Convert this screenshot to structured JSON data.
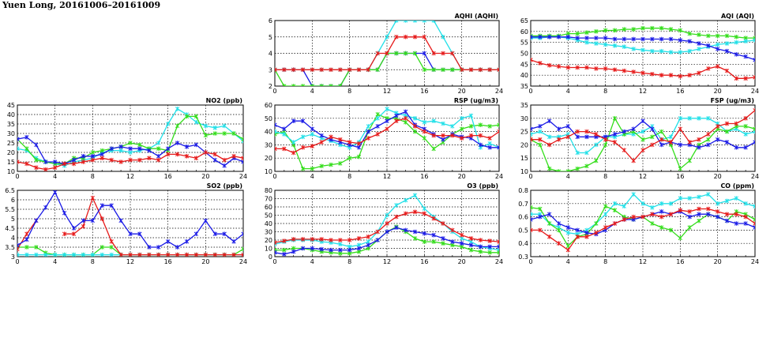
{
  "page": {
    "title": "Yuen Long, 20161006–20161009"
  },
  "colors": {
    "blue": "#1a1ae6",
    "red": "#e61a1a",
    "green": "#33dd1a",
    "cyan": "#22e0e8",
    "grid": "#000000"
  },
  "chart_data": [
    {
      "id": "aqhi",
      "type": "line",
      "title": "AQHI (AQHI)",
      "xlim": [
        0,
        24
      ],
      "xticks": [
        0,
        4,
        8,
        12,
        16,
        20,
        24
      ],
      "ylim": [
        2,
        6
      ],
      "yticks": [
        2,
        3,
        4,
        5,
        6
      ],
      "grid": true,
      "series": [
        {
          "color": "blue",
          "values": [
            3,
            3,
            3,
            3,
            2,
            2,
            2,
            2,
            3,
            3,
            3,
            3,
            4,
            4,
            4,
            4,
            4,
            3,
            3,
            3,
            3,
            3,
            3,
            3,
            3
          ]
        },
        {
          "color": "green",
          "values": [
            3,
            2,
            2,
            2,
            2,
            2,
            2,
            2,
            3,
            3,
            3,
            3,
            4,
            4,
            4,
            4,
            3,
            3,
            3,
            3,
            3,
            3,
            3,
            3,
            3
          ]
        },
        {
          "color": "cyan",
          "values": [
            3,
            3,
            3,
            3,
            3,
            3,
            3,
            3,
            3,
            3,
            3,
            4,
            5,
            6,
            6,
            6,
            6,
            6,
            5,
            4,
            3,
            3,
            3,
            3,
            3
          ]
        },
        {
          "color": "red",
          "values": [
            3,
            3,
            3,
            3,
            3,
            3,
            3,
            3,
            3,
            3,
            3,
            4,
            4,
            5,
            5,
            5,
            5,
            4,
            4,
            4,
            3,
            3,
            3,
            3,
            3
          ]
        }
      ]
    },
    {
      "id": "aqi",
      "type": "line",
      "title": "AQI (AQI)",
      "xlim": [
        0,
        24
      ],
      "xticks": [
        0,
        4,
        8,
        12,
        16,
        20,
        24
      ],
      "ylim": [
        35,
        65
      ],
      "yticks": [
        35,
        40,
        45,
        50,
        55,
        60,
        65
      ],
      "grid": true,
      "series": [
        {
          "color": "green",
          "values": [
            58,
            58,
            58,
            58,
            59,
            59,
            59.5,
            60,
            60.5,
            60.5,
            61,
            61,
            61.5,
            61.5,
            61.5,
            61,
            60.5,
            59,
            58.5,
            58,
            58,
            58,
            57.5,
            57,
            57
          ]
        },
        {
          "color": "cyan",
          "values": [
            57,
            57,
            57.5,
            57.5,
            57,
            56,
            55,
            54.5,
            54,
            53.5,
            53,
            52,
            51.5,
            51,
            51,
            50.5,
            50.5,
            51,
            52,
            53,
            54,
            54.5,
            55,
            55.5,
            56
          ]
        },
        {
          "color": "blue",
          "values": [
            57.5,
            57.5,
            57.5,
            57.5,
            57.5,
            57,
            57,
            57,
            57,
            56.5,
            56.5,
            56.5,
            56.5,
            56.5,
            56.5,
            56.5,
            56,
            55.5,
            54.5,
            53.5,
            52,
            51,
            49.5,
            48.5,
            47
          ]
        },
        {
          "color": "red",
          "values": [
            47,
            45.5,
            44.5,
            44,
            43.5,
            43.5,
            43.5,
            43,
            43,
            42.5,
            42,
            41.5,
            41,
            40.5,
            40,
            40,
            39.5,
            40,
            41,
            43,
            44,
            42,
            38.5,
            38.5,
            39
          ]
        }
      ]
    },
    {
      "id": "no2",
      "type": "line",
      "title": "NO2 (ppb)",
      "xlim": [
        0,
        24
      ],
      "xticks": [
        0,
        4,
        8,
        12,
        16,
        20,
        24
      ],
      "ylim": [
        10,
        45
      ],
      "yticks": [
        10,
        15,
        20,
        25,
        30,
        35,
        40,
        45
      ],
      "grid": true,
      "series": [
        {
          "color": "cyan",
          "values": [
            22,
            21,
            17,
            15,
            14,
            13,
            15,
            16,
            17,
            20,
            21,
            21,
            20,
            21,
            22,
            25,
            35,
            43,
            40,
            36,
            34,
            33,
            34,
            30,
            26
          ]
        },
        {
          "color": "green",
          "values": [
            27,
            22,
            16,
            15,
            14,
            14,
            17,
            17,
            20,
            21,
            22,
            23,
            25,
            24,
            22,
            22,
            21,
            34,
            39,
            39,
            29,
            30,
            30,
            30,
            27
          ]
        },
        {
          "color": "blue",
          "values": [
            27,
            28,
            24,
            15,
            15,
            14,
            16,
            18,
            18,
            19,
            22,
            23,
            22,
            22,
            21,
            18,
            22,
            25,
            23,
            24,
            20,
            16,
            13,
            17,
            15
          ]
        },
        {
          "color": "red",
          "values": [
            15,
            14,
            12,
            11,
            12,
            14,
            14,
            15,
            16,
            17,
            16,
            15,
            16,
            16,
            17,
            16,
            19,
            19,
            18,
            17,
            20,
            19,
            16,
            18,
            17
          ]
        }
      ]
    },
    {
      "id": "rsp",
      "type": "line",
      "title": "RSP (ug/m3)",
      "xlim": [
        0,
        24
      ],
      "xticks": [
        0,
        4,
        8,
        12,
        16,
        20,
        24
      ],
      "ylim": [
        10,
        60
      ],
      "yticks": [
        10,
        20,
        30,
        40,
        50,
        60
      ],
      "grid": true,
      "series": [
        {
          "color": "green",
          "values": [
            38,
            40,
            30,
            12,
            12,
            14,
            15,
            16,
            20,
            21,
            40,
            53,
            50,
            50,
            47,
            40,
            35,
            27,
            32,
            38,
            42,
            44,
            45,
            44,
            45
          ]
        },
        {
          "color": "cyan",
          "values": [
            40,
            38,
            32,
            36,
            38,
            35,
            33,
            30,
            28,
            32,
            44,
            50,
            57,
            54,
            52,
            50,
            47,
            48,
            46,
            44,
            50,
            52,
            28,
            31,
            28
          ]
        },
        {
          "color": "blue",
          "values": [
            45,
            42,
            48,
            48,
            42,
            37,
            34,
            32,
            30,
            28,
            40,
            44,
            48,
            52,
            55,
            45,
            42,
            38,
            34,
            38,
            36,
            35,
            30,
            28,
            28
          ]
        },
        {
          "color": "red",
          "values": [
            27,
            27,
            24,
            28,
            29,
            32,
            36,
            34,
            32,
            31,
            35,
            38,
            42,
            48,
            50,
            44,
            40,
            37,
            37,
            37,
            35,
            37,
            37,
            35,
            40
          ]
        }
      ]
    },
    {
      "id": "fsp",
      "type": "line",
      "title": "FSP (ug/m3)",
      "xlim": [
        0,
        24
      ],
      "xticks": [
        0,
        4,
        8,
        12,
        16,
        20,
        24
      ],
      "ylim": [
        10,
        35
      ],
      "yticks": [
        10,
        15,
        20,
        25,
        30,
        35
      ],
      "grid": true,
      "series": [
        {
          "color": "cyan",
          "values": [
            24,
            25,
            23,
            23,
            24,
            17,
            17,
            20,
            23,
            23,
            24,
            24,
            25,
            27,
            22,
            23,
            30,
            30,
            30,
            30,
            28,
            25,
            26,
            24,
            25
          ]
        },
        {
          "color": "green",
          "values": [
            22,
            20,
            11,
            10,
            10,
            11,
            12,
            14,
            20,
            30,
            24,
            25,
            22,
            23,
            25,
            20,
            11,
            14,
            20,
            22,
            26,
            25,
            27,
            27,
            26
          ]
        },
        {
          "color": "blue",
          "values": [
            26,
            27,
            29,
            26,
            27,
            23,
            23,
            23,
            23,
            24,
            25,
            26,
            29,
            26,
            20,
            21,
            20,
            20,
            19,
            20,
            22,
            21,
            19,
            19,
            21
          ]
        },
        {
          "color": "red",
          "values": [
            22,
            22,
            20,
            22,
            23,
            25,
            25,
            24,
            22,
            21,
            18,
            14,
            18,
            20,
            22,
            21,
            26,
            21,
            22,
            24,
            27,
            28,
            28,
            30,
            33
          ]
        }
      ]
    },
    {
      "id": "so2",
      "type": "line",
      "title": "SO2 (ppb)",
      "xlim": [
        0,
        24
      ],
      "xticks": [
        0,
        4,
        8,
        12,
        16,
        20,
        24
      ],
      "ylim": [
        3,
        6.5
      ],
      "yticks": [
        3,
        3.5,
        4,
        4.5,
        5,
        5.5,
        6,
        6.5
      ],
      "grid": true,
      "series": [
        {
          "color": "green",
          "values": [
            3.5,
            3.5,
            3.5,
            3.2,
            3.1,
            3.1,
            3.1,
            3.1,
            3.1,
            3.5,
            3.5,
            3.1,
            3.1,
            3.1,
            3.1,
            3.1,
            3.1,
            3.1,
            3.1,
            3.1,
            3.1,
            3.1,
            3.1,
            3.1,
            3.4
          ]
        },
        {
          "color": "cyan",
          "values": [
            3.1,
            3.1,
            3.1,
            3.1,
            3.1,
            3.1,
            3.1,
            3.1,
            3.1,
            3.1,
            3.1,
            3.1,
            3.1,
            3.1,
            3.1,
            3.1,
            3.1,
            3.1,
            3.1,
            3.1,
            3.1,
            3.1,
            3.1,
            3.1,
            3.1
          ]
        },
        {
          "color": "red",
          "values": [
            3.4,
            4.2,
            4.9,
            null,
            null,
            4.2,
            4.2,
            4.6,
            6.1,
            5.0,
            3.8,
            3.1,
            3.1,
            3.1,
            3.1,
            3.1,
            3.1,
            3.1,
            3.1,
            3.1,
            3.1,
            3.1,
            3.1,
            3.1,
            3.1
          ]
        },
        {
          "color": "blue",
          "values": [
            3.6,
            3.9,
            4.9,
            5.6,
            6.4,
            5.3,
            4.5,
            4.9,
            4.9,
            5.7,
            5.7,
            4.9,
            4.2,
            4.2,
            3.5,
            3.5,
            3.8,
            3.5,
            3.8,
            4.2,
            4.9,
            4.2,
            4.2,
            3.8,
            4.2
          ]
        }
      ]
    },
    {
      "id": "o3",
      "type": "line",
      "title": "O3 (ppb)",
      "xlim": [
        0,
        24
      ],
      "xticks": [
        0,
        4,
        8,
        12,
        16,
        20,
        24
      ],
      "ylim": [
        0,
        80
      ],
      "yticks": [
        0,
        10,
        20,
        30,
        40,
        50,
        60,
        70,
        80
      ],
      "grid": true,
      "series": [
        {
          "color": "cyan",
          "values": [
            15,
            18,
            20,
            20,
            20,
            18,
            17,
            15,
            12,
            14,
            18,
            30,
            50,
            62,
            68,
            74,
            58,
            48,
            40,
            30,
            22,
            18,
            12,
            10,
            8
          ]
        },
        {
          "color": "red",
          "values": [
            17,
            19,
            21,
            21,
            21,
            21,
            20,
            20,
            20,
            22,
            24,
            30,
            40,
            48,
            52,
            54,
            52,
            46,
            40,
            32,
            26,
            22,
            20,
            19,
            18
          ]
        },
        {
          "color": "green",
          "values": [
            8,
            8,
            10,
            10,
            8,
            6,
            5,
            4,
            4,
            6,
            10,
            20,
            30,
            36,
            30,
            22,
            18,
            18,
            16,
            14,
            12,
            8,
            6,
            5,
            5
          ]
        },
        {
          "color": "blue",
          "values": [
            5,
            3,
            6,
            10,
            10,
            9,
            8,
            8,
            8,
            10,
            14,
            20,
            30,
            35,
            32,
            30,
            28,
            26,
            22,
            18,
            16,
            14,
            12,
            12,
            12
          ]
        }
      ]
    },
    {
      "id": "co",
      "type": "line",
      "title": "CO (ppm)",
      "xlim": [
        0,
        24
      ],
      "xticks": [
        0,
        4,
        8,
        12,
        16,
        20,
        24
      ],
      "ylim": [
        0.3,
        0.8
      ],
      "yticks": [
        0.3,
        0.4,
        0.5,
        0.6,
        0.7,
        0.8
      ],
      "grid": true,
      "series": [
        {
          "color": "cyan",
          "values": [
            0.62,
            0.62,
            0.55,
            0.52,
            0.48,
            0.47,
            0.5,
            0.55,
            0.62,
            0.7,
            0.68,
            0.77,
            0.7,
            0.67,
            0.7,
            0.7,
            0.74,
            0.74,
            0.75,
            0.77,
            0.7,
            0.72,
            0.74,
            0.7,
            0.68
          ]
        },
        {
          "color": "green",
          "values": [
            0.67,
            0.66,
            0.55,
            0.5,
            0.38,
            0.45,
            0.47,
            0.55,
            0.68,
            0.65,
            0.6,
            0.58,
            0.6,
            0.55,
            0.52,
            0.5,
            0.44,
            0.52,
            0.57,
            0.62,
            0.6,
            0.57,
            0.64,
            0.62,
            0.58
          ]
        },
        {
          "color": "blue",
          "values": [
            0.58,
            0.6,
            0.62,
            0.55,
            0.52,
            0.5,
            0.48,
            0.47,
            0.5,
            0.55,
            0.58,
            0.58,
            0.6,
            0.62,
            0.64,
            0.62,
            0.64,
            0.6,
            0.62,
            0.62,
            0.6,
            0.57,
            0.55,
            0.55,
            0.52
          ]
        },
        {
          "color": "red",
          "values": [
            0.5,
            0.5,
            0.45,
            0.4,
            0.35,
            0.45,
            0.45,
            0.48,
            0.52,
            0.55,
            0.58,
            0.6,
            0.6,
            0.62,
            0.6,
            0.62,
            0.65,
            0.64,
            0.66,
            0.66,
            0.64,
            0.62,
            0.62,
            0.6,
            0.55
          ]
        }
      ]
    }
  ]
}
